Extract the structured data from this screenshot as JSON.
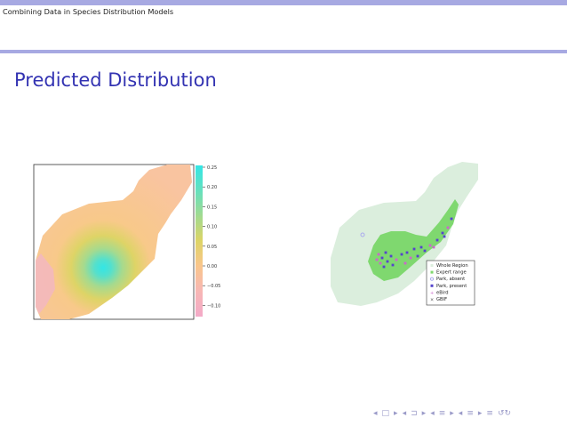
{
  "header": {
    "title": "Combining Data in Species Distribution Models"
  },
  "slide": {
    "title": "Predicted Distribution"
  },
  "colors": {
    "accent": "#a7a9e2",
    "title_text": "#3333b2",
    "nav": "#9a9ac8"
  },
  "left_plot": {
    "colorbar": {
      "tick_labels": [
        "0.25",
        "0.20",
        "0.15",
        "0.10",
        "0.05",
        "0.00",
        "−0.05",
        "−0.10"
      ],
      "colors": [
        "#33e6e6",
        "#66e0bd",
        "#a4da8e",
        "#ddd466",
        "#f9c68a",
        "#f7b7b4",
        "#f3aac8"
      ]
    }
  },
  "right_plot": {
    "legend": {
      "entries": [
        {
          "label": "Whole Region",
          "symbol": "square",
          "color": "#dbeedd"
        },
        {
          "label": "Expert range",
          "symbol": "square",
          "color": "#7fd86f"
        },
        {
          "label": "Park, absent",
          "symbol": "circle-open",
          "color": "#aaaaee"
        },
        {
          "label": "Park, present",
          "symbol": "square-filled",
          "color": "#5544cc"
        },
        {
          "label": "eBird",
          "symbol": "plus",
          "color": "#cc66cc"
        },
        {
          "label": "GBIF",
          "symbol": "cross",
          "color": "#555555"
        }
      ]
    }
  },
  "navigation": {
    "icons": [
      "nav-frame-left-icon",
      "nav-frame-right-icon",
      "nav-subsection-left-icon",
      "nav-subsection-right-icon",
      "nav-section-left-icon",
      "nav-section-right-icon",
      "nav-slide-left-icon",
      "nav-slide-right-icon",
      "nav-align-icon",
      "nav-search-icon"
    ],
    "glyphs": [
      "◂",
      "□",
      "▸",
      "◂",
      "⊐",
      "▸",
      "◂",
      "≡",
      "▸",
      "◂",
      "≡",
      "▸",
      "≡",
      "↺↻"
    ]
  }
}
